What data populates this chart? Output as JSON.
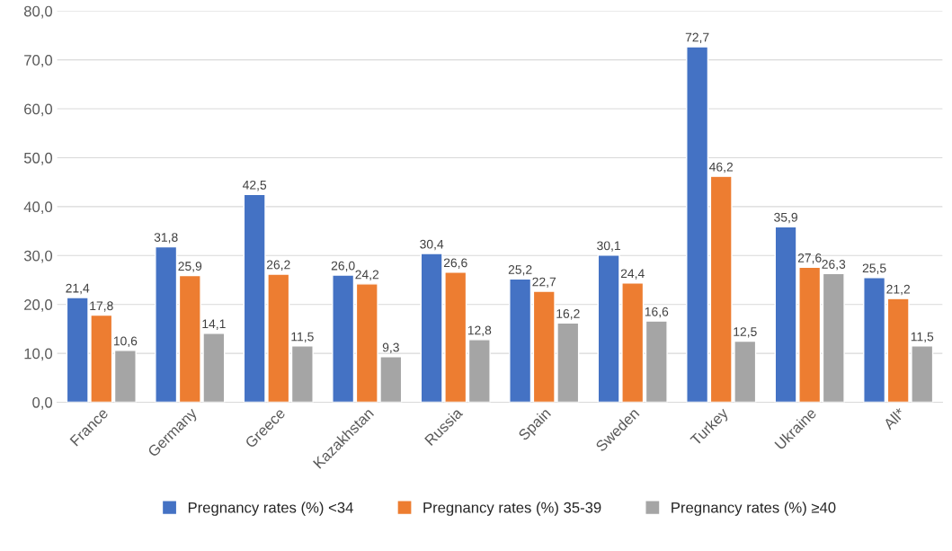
{
  "chart_data": {
    "type": "bar",
    "categories": [
      "France",
      "Germany",
      "Greece",
      "Kazakhstan",
      "Russia",
      "Spain",
      "Sweden",
      "Turkey",
      "Ukraine",
      "All*"
    ],
    "series": [
      {
        "name": "Pregnancy rates (%) <34",
        "color": "#4472c4",
        "values": [
          21.4,
          31.8,
          42.5,
          26.0,
          30.4,
          25.2,
          30.1,
          72.7,
          35.9,
          25.5
        ],
        "value_labels": [
          "21,4",
          "31,8",
          "42,5",
          "26,0",
          "30,4",
          "25,2",
          "30,1",
          "72,7",
          "35,9",
          "25,5"
        ]
      },
      {
        "name": "Pregnancy rates (%) 35-39",
        "color": "#ed7d31",
        "values": [
          17.8,
          25.9,
          26.2,
          24.2,
          26.6,
          22.7,
          24.4,
          46.2,
          27.6,
          21.2
        ],
        "value_labels": [
          "17,8",
          "25,9",
          "26,2",
          "24,2",
          "26,6",
          "22,7",
          "24,4",
          "46,2",
          "27,6",
          "21,2"
        ]
      },
      {
        "name": "Pregnancy rates (%) ≥40",
        "color": "#a5a5a5",
        "values": [
          10.6,
          14.1,
          11.5,
          9.3,
          12.8,
          16.2,
          16.6,
          12.5,
          26.3,
          11.5
        ],
        "value_labels": [
          "10,6",
          "14,1",
          "11,5",
          "9,3",
          "12,8",
          "16,2",
          "16,6",
          "12,5",
          "26,3",
          "11,5"
        ]
      }
    ],
    "ylim": [
      0,
      80
    ],
    "yticks": [
      {
        "value": 0,
        "label": "0,0"
      },
      {
        "value": 10,
        "label": "10,0"
      },
      {
        "value": 20,
        "label": "20,0"
      },
      {
        "value": 30,
        "label": "30,0"
      },
      {
        "value": 40,
        "label": "40,0"
      },
      {
        "value": 50,
        "label": "50,0"
      },
      {
        "value": 60,
        "label": "60,0"
      },
      {
        "value": 70,
        "label": "70,0"
      },
      {
        "value": 80,
        "label": "80,0"
      }
    ],
    "grid": "y",
    "legend": "bottom"
  }
}
